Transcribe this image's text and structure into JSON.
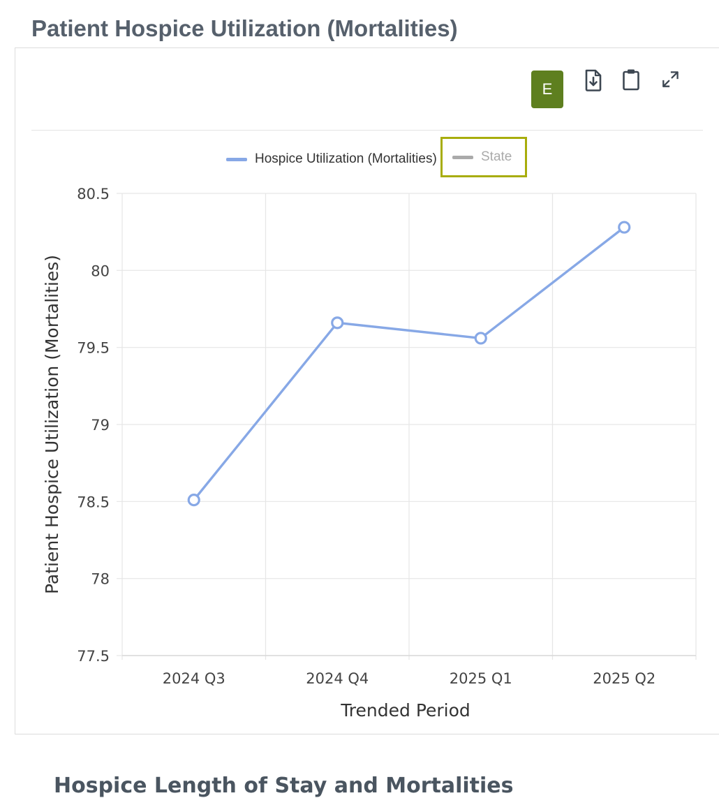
{
  "page": {
    "title": "Patient Hospice Utilization (Mortalities)",
    "next_section_title": "Hospice Length of Stay and Mortalities"
  },
  "toolbar": {
    "export_label": "E",
    "export_color": "#5e7f1f",
    "icons": [
      "file-download-icon",
      "clipboard-icon",
      "expand-icon"
    ]
  },
  "legend": {
    "items": [
      {
        "label": "Hospice Utilization (Mortalities)",
        "color": "#87a8e6",
        "active": true
      },
      {
        "label": "State",
        "color": "#aaaaaa",
        "active": false
      }
    ],
    "placement": "top-center"
  },
  "chart_data": {
    "type": "line",
    "title": "",
    "xlabel": "Trended Period",
    "ylabel": "Patient Hospice Utilization (Mortalities)",
    "categories": [
      "2024 Q3",
      "2024 Q4",
      "2025 Q1",
      "2025 Q2"
    ],
    "series": [
      {
        "name": "Hospice Utilization (Mortalities)",
        "values": [
          78.51,
          79.66,
          79.56,
          80.28
        ],
        "color": "#87a8e6"
      }
    ],
    "ylim": [
      77.5,
      80.5
    ],
    "yticks": [
      "77.5",
      "78",
      "78.5",
      "79",
      "79.5",
      "80",
      "80.5"
    ],
    "grid": true
  }
}
